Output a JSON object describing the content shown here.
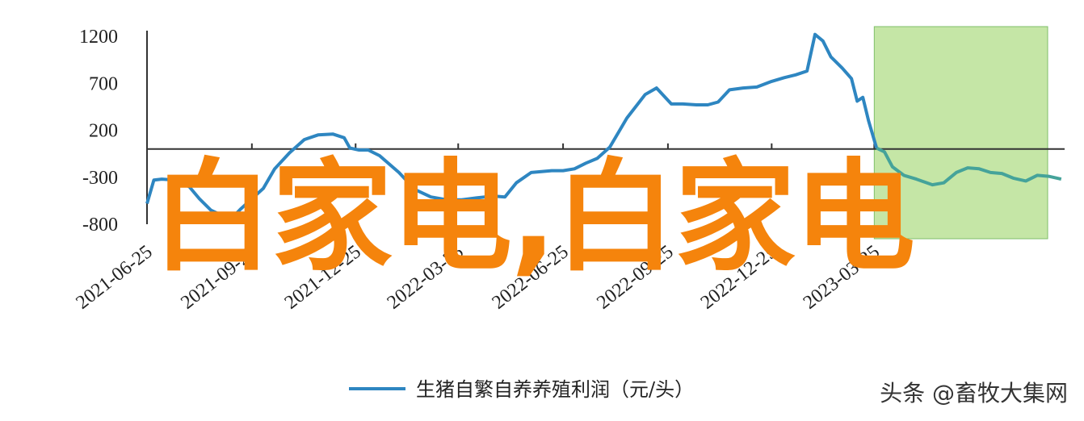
{
  "chart_data": {
    "type": "line",
    "series": [
      {
        "name": "生猪自繁自养养殖利润（元/头）",
        "color": "#2e86c1",
        "points": [
          [
            "2021-06-25",
            -580
          ],
          [
            "2021-07-01",
            -330
          ],
          [
            "2021-07-08",
            -320
          ],
          [
            "2021-07-20",
            -330
          ],
          [
            "2021-08-01",
            -400
          ],
          [
            "2021-08-10",
            -530
          ],
          [
            "2021-08-20",
            -650
          ],
          [
            "2021-09-01",
            -720
          ],
          [
            "2021-09-08",
            -730
          ],
          [
            "2021-09-15",
            -640
          ],
          [
            "2021-09-25",
            -530
          ],
          [
            "2021-10-05",
            -420
          ],
          [
            "2021-10-15",
            -210
          ],
          [
            "2021-10-28",
            -40
          ],
          [
            "2021-11-10",
            100
          ],
          [
            "2021-11-22",
            150
          ],
          [
            "2021-12-05",
            160
          ],
          [
            "2021-12-15",
            120
          ],
          [
            "2021-12-20",
            10
          ],
          [
            "2021-12-28",
            -10
          ],
          [
            "2022-01-05",
            -10
          ],
          [
            "2022-01-15",
            -70
          ],
          [
            "2022-02-01",
            -250
          ],
          [
            "2022-02-15",
            -430
          ],
          [
            "2022-03-01",
            -510
          ],
          [
            "2022-03-15",
            -540
          ],
          [
            "2022-03-28",
            -540
          ],
          [
            "2022-04-10",
            -520
          ],
          [
            "2022-04-25",
            -500
          ],
          [
            "2022-05-05",
            -510
          ],
          [
            "2022-05-15",
            -360
          ],
          [
            "2022-05-28",
            -250
          ],
          [
            "2022-06-15",
            -230
          ],
          [
            "2022-06-25",
            -230
          ],
          [
            "2022-07-05",
            -210
          ],
          [
            "2022-07-15",
            -150
          ],
          [
            "2022-07-25",
            -100
          ],
          [
            "2022-08-05",
            20
          ],
          [
            "2022-08-20",
            330
          ],
          [
            "2022-09-05",
            580
          ],
          [
            "2022-09-15",
            650
          ],
          [
            "2022-09-28",
            480
          ],
          [
            "2022-10-08",
            480
          ],
          [
            "2022-10-20",
            470
          ],
          [
            "2022-10-30",
            470
          ],
          [
            "2022-11-08",
            500
          ],
          [
            "2022-11-18",
            630
          ],
          [
            "2022-11-30",
            650
          ],
          [
            "2022-12-12",
            660
          ],
          [
            "2022-12-25",
            720
          ],
          [
            "2023-01-05",
            760
          ],
          [
            "2023-01-15",
            790
          ],
          [
            "2023-01-25",
            830
          ],
          [
            "2023-02-01",
            1220
          ],
          [
            "2023-02-08",
            1150
          ],
          [
            "2023-02-15",
            980
          ],
          [
            "2023-02-25",
            860
          ],
          [
            "2023-03-05",
            750
          ],
          [
            "2023-03-10",
            510
          ],
          [
            "2023-03-15",
            550
          ],
          [
            "2023-03-20",
            300
          ],
          [
            "2023-03-27",
            10
          ],
          [
            "2023-04-03",
            -30
          ],
          [
            "2023-04-10",
            -190
          ],
          [
            "2023-04-20",
            -280
          ],
          [
            "2023-05-01",
            -320
          ],
          [
            "2023-05-15",
            -380
          ],
          [
            "2023-05-25",
            -360
          ],
          [
            "2023-06-05",
            -250
          ],
          [
            "2023-06-15",
            -200
          ],
          [
            "2023-06-25",
            -210
          ],
          [
            "2023-07-05",
            -250
          ],
          [
            "2023-07-15",
            -260
          ],
          [
            "2023-07-25",
            -310
          ],
          [
            "2023-08-05",
            -340
          ],
          [
            "2023-08-15",
            -280
          ],
          [
            "2023-08-25",
            -290
          ],
          [
            "2023-09-05",
            -320
          ]
        ]
      }
    ],
    "x_ticks": [
      "2021-06-25",
      "2021-09-25",
      "2021-12-25",
      "2022-03-25",
      "2022-06-25",
      "2022-09-25",
      "2022-12-25",
      "2023-03-25"
    ],
    "x_range": [
      "2021-06-25",
      "2023-09-08"
    ],
    "y_ticks": [
      1200,
      700,
      200,
      -300,
      -800
    ],
    "ylim": [
      -800,
      1200
    ],
    "grid": false,
    "legend_placement": "bottom-center",
    "highlight": {
      "from": "2023-03-25",
      "to": "2023-09-08",
      "color": "#c5e6a6"
    },
    "line_color_after_highlight": "#45a39a"
  },
  "overlay_text": "白家电,白家电",
  "watermark": "头条 @畜牧大集网"
}
